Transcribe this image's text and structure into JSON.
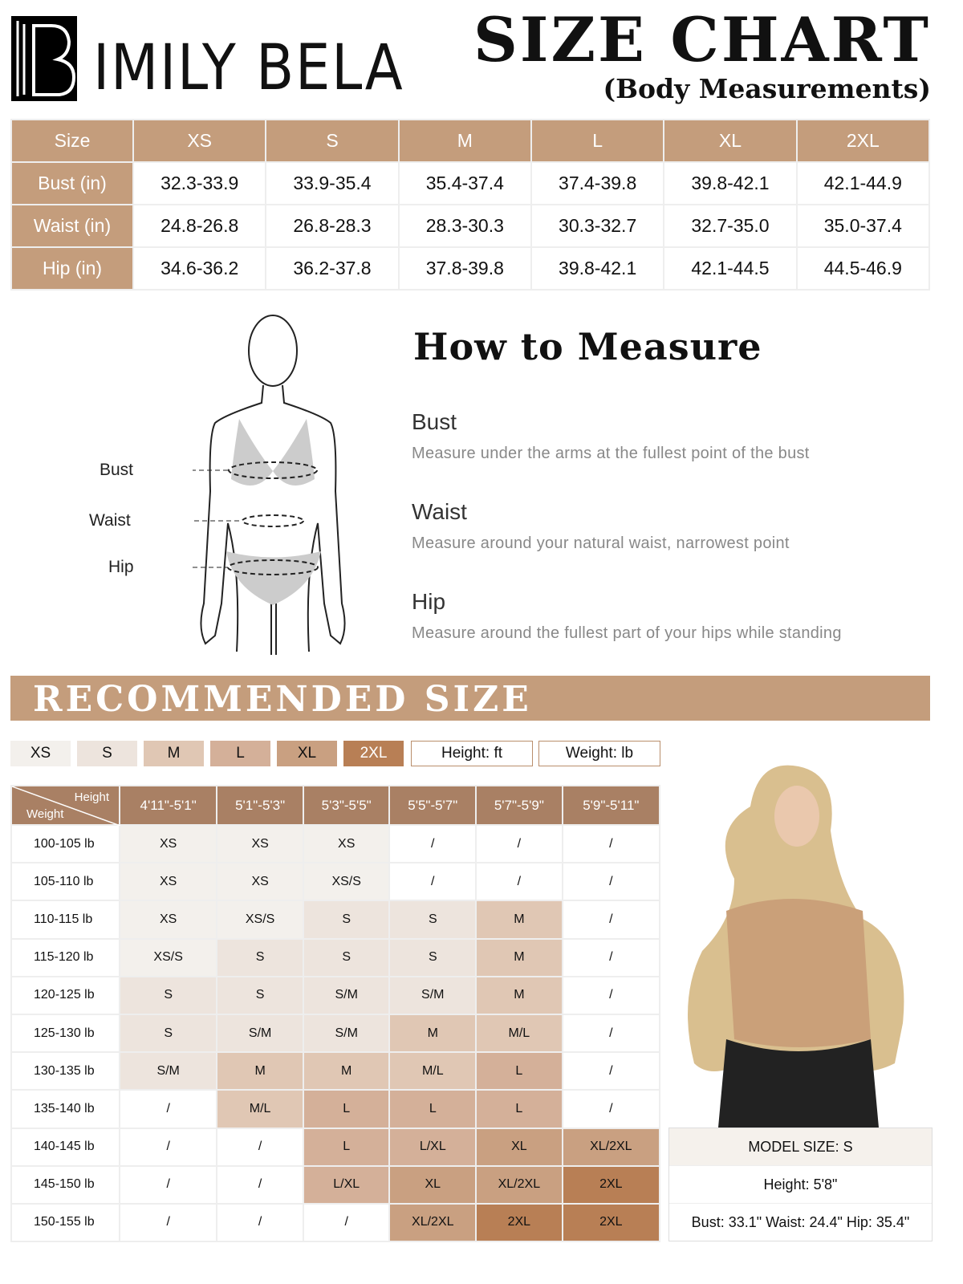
{
  "brand": {
    "name": "IMILY BELA",
    "logo_letter": "B"
  },
  "title": "SIZE CHART",
  "subtitle": "(Body Measurements)",
  "size_table": {
    "header": [
      "Size",
      "XS",
      "S",
      "M",
      "L",
      "XL",
      "2XL"
    ],
    "rows": [
      [
        "Bust (in)",
        "32.3-33.9",
        "33.9-35.4",
        "35.4-37.4",
        "37.4-39.8",
        "39.8-42.1",
        "42.1-44.9"
      ],
      [
        "Waist (in)",
        "24.8-26.8",
        "26.8-28.3",
        "28.3-30.3",
        "30.3-32.7",
        "32.7-35.0",
        "35.0-37.4"
      ],
      [
        "Hip (in)",
        "34.6-36.2",
        "36.2-37.8",
        "37.8-39.8",
        "39.8-42.1",
        "42.1-44.5",
        "44.5-46.9"
      ]
    ]
  },
  "how_to": {
    "title": "How to Measure",
    "items": [
      {
        "name": "Bust",
        "desc": "Measure under the arms at the fullest point of the bust"
      },
      {
        "name": "Waist",
        "desc": "Measure around your natural waist, narrowest point"
      },
      {
        "name": "Hip",
        "desc": "Measure around the fullest part of your hips while standing"
      }
    ],
    "figure_labels": [
      "Bust",
      "Waist",
      "Hip"
    ]
  },
  "recommended": {
    "title": "RECOMMENDED SIZE",
    "legend": [
      {
        "size": "XS",
        "color": "#f3f0ec"
      },
      {
        "size": "S",
        "color": "#ede4dd"
      },
      {
        "size": "M",
        "color": "#e0c7b4"
      },
      {
        "size": "L",
        "color": "#d4b099"
      },
      {
        "size": "XL",
        "color": "#c9a081"
      },
      {
        "size": "2XL",
        "color": "#b87f55"
      }
    ],
    "units": [
      "Height: ft",
      "Weight: lb"
    ],
    "corner": {
      "height": "Height",
      "weight": "Weight"
    },
    "heights": [
      "4'11\"-5'1\"",
      "5'1\"-5'3\"",
      "5'3\"-5'5\"",
      "5'5\"-5'7\"",
      "5'7\"-5'9\"",
      "5'9\"-5'11\""
    ],
    "rows": [
      {
        "weight": "100-105 lb",
        "sizes": [
          "XS",
          "XS",
          "XS",
          "/",
          "/",
          "/"
        ]
      },
      {
        "weight": "105-110 lb",
        "sizes": [
          "XS",
          "XS",
          "XS/S",
          "/",
          "/",
          "/"
        ]
      },
      {
        "weight": "110-115 lb",
        "sizes": [
          "XS",
          "XS/S",
          "S",
          "S",
          "M",
          "/"
        ]
      },
      {
        "weight": "115-120 lb",
        "sizes": [
          "XS/S",
          "S",
          "S",
          "S",
          "M",
          "/"
        ]
      },
      {
        "weight": "120-125 lb",
        "sizes": [
          "S",
          "S",
          "S/M",
          "S/M",
          "M",
          "/"
        ]
      },
      {
        "weight": "125-130 lb",
        "sizes": [
          "S",
          "S/M",
          "S/M",
          "M",
          "M/L",
          "/"
        ]
      },
      {
        "weight": "130-135 lb",
        "sizes": [
          "S/M",
          "M",
          "M",
          "M/L",
          "L",
          "/"
        ]
      },
      {
        "weight": "135-140 lb",
        "sizes": [
          "/",
          "M/L",
          "L",
          "L",
          "L",
          "/"
        ]
      },
      {
        "weight": "140-145 lb",
        "sizes": [
          "/",
          "/",
          "L",
          "L/XL",
          "XL",
          "XL/2XL"
        ]
      },
      {
        "weight": "145-150 lb",
        "sizes": [
          "/",
          "/",
          "L/XL",
          "XL",
          "XL/2XL",
          "2XL"
        ]
      },
      {
        "weight": "150-155 lb",
        "sizes": [
          "/",
          "/",
          "/",
          "XL/2XL",
          "2XL",
          "2XL"
        ]
      }
    ]
  },
  "model": {
    "size": "MODEL SIZE: S",
    "height": "Height: 5'8\"",
    "measurements": "Bust: 33.1\" Waist: 24.4\" Hip: 35.4\""
  }
}
